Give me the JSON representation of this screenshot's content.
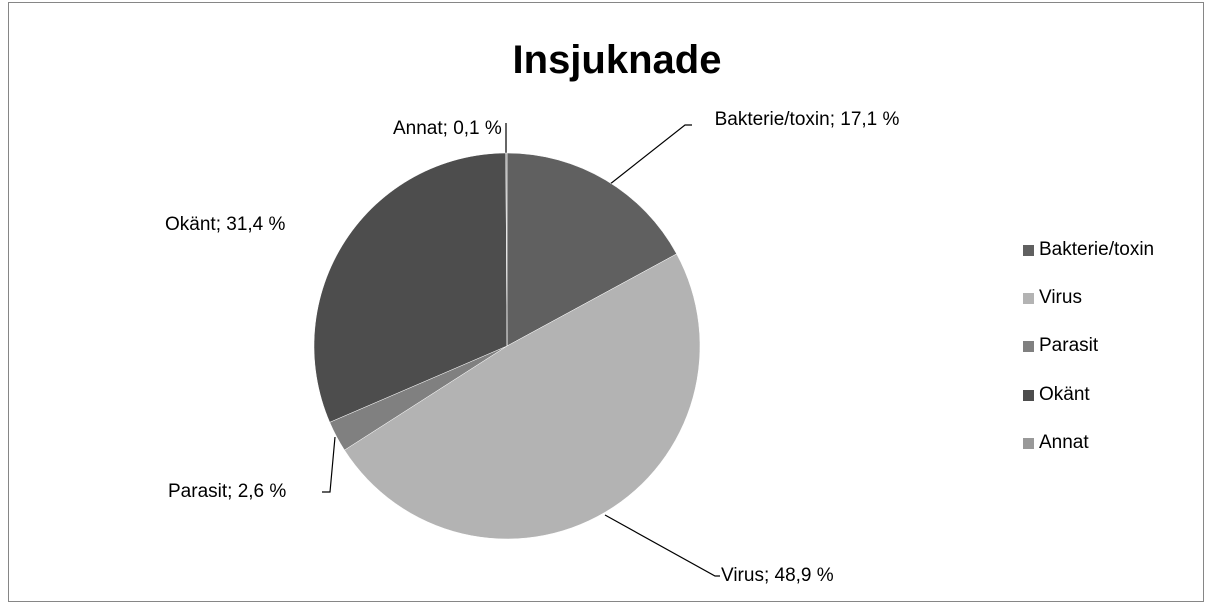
{
  "chart_data": {
    "type": "pie",
    "title": "Insjuknade",
    "categories": [
      "Bakterie/toxin",
      "Virus",
      "Parasit",
      "Okänt",
      "Annat"
    ],
    "values": [
      17.1,
      48.9,
      2.6,
      31.4,
      0.1
    ],
    "value_labels": [
      "Bakterie/toxin; 17,1 %",
      "Virus; 48,9 %",
      "Parasit; 2,6 %",
      "Okänt; 31,4 %",
      "Annat; 0,1 %"
    ],
    "colors": [
      "#606060",
      "#b3b3b3",
      "#808080",
      "#4d4d4d",
      "#999999"
    ],
    "legend": "right"
  }
}
